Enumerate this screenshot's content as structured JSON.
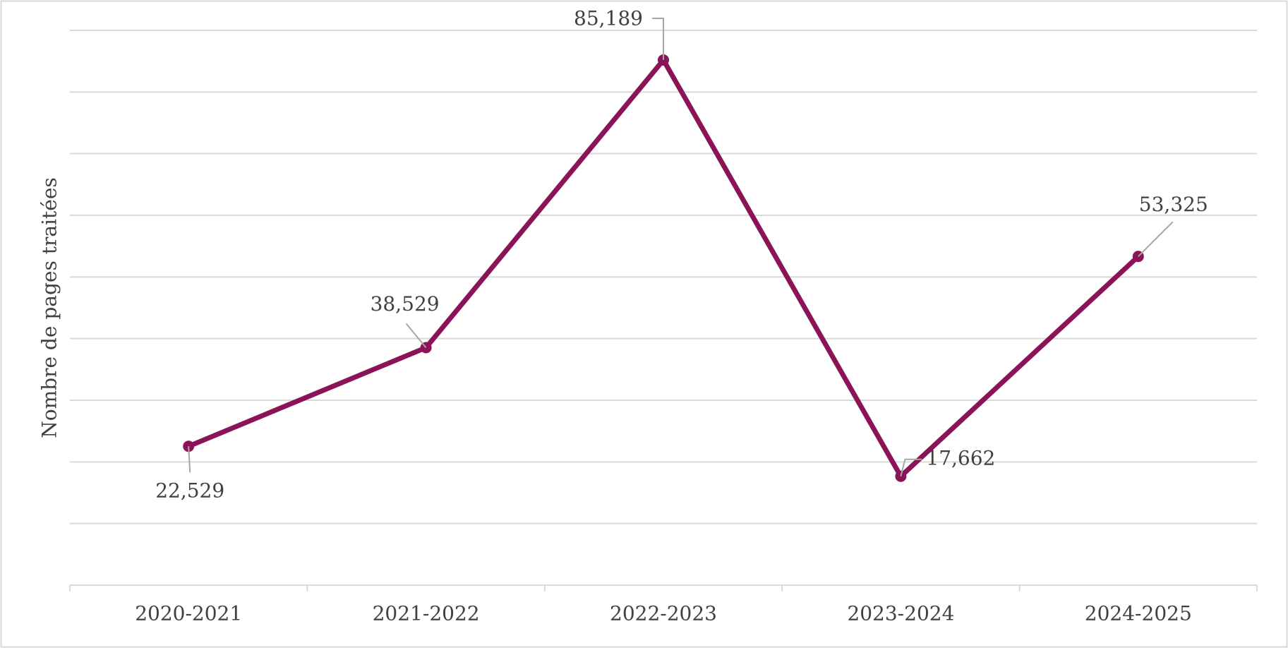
{
  "chart_data": {
    "type": "line",
    "y_label": "Nombre de pages traitées",
    "categories": [
      "2020-2021",
      "2021-2022",
      "2022-2023",
      "2023-2024",
      "2024-2025"
    ],
    "series": [
      {
        "color": "#8b1458",
        "values": [
          22529,
          38529,
          85189,
          17662,
          53325
        ],
        "value_labels": [
          "22,529",
          "38,529",
          "85,189",
          "17,662",
          "53,325"
        ]
      }
    ],
    "ylim": [
      0,
      90000
    ],
    "yticks": [
      0,
      10000,
      20000,
      30000,
      40000,
      50000,
      60000,
      70000,
      80000,
      90000
    ],
    "grid": true
  }
}
